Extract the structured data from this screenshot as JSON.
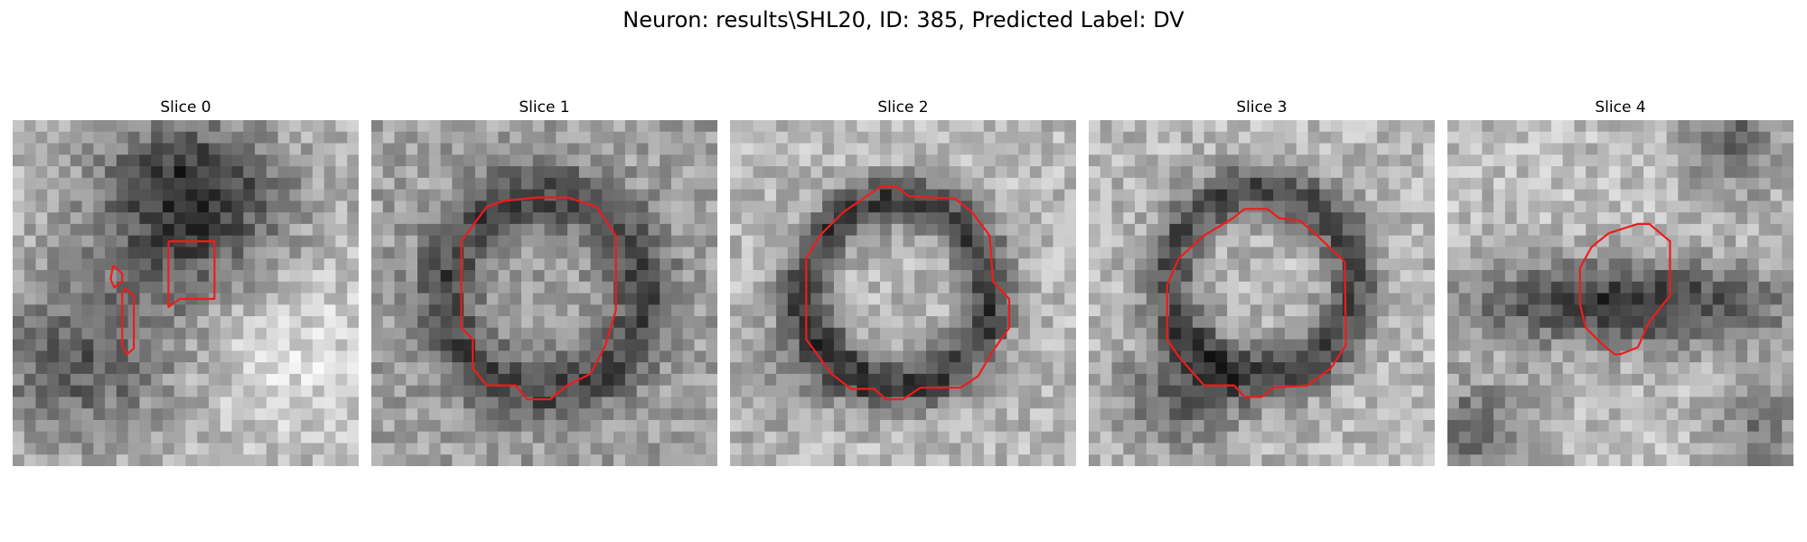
{
  "figure": {
    "title": "Neuron: results\\SHL20, ID: 385, Predicted Label: DV"
  },
  "colors": {
    "contour": "#ee1c1c",
    "background": "#ffffff"
  },
  "panels": [
    {
      "title": "Slice 0",
      "image_desc": "grayscale patch with dark region, small contours"
    },
    {
      "title": "Slice 1",
      "image_desc": "grayscale patch with ring-like cell body outlined"
    },
    {
      "title": "Slice 2",
      "image_desc": "grayscale patch with ring-like cell body outlined"
    },
    {
      "title": "Slice 3",
      "image_desc": "grayscale patch with ring-like cell body outlined"
    },
    {
      "title": "Slice 4",
      "image_desc": "grayscale patch with dark band, small outline"
    }
  ]
}
